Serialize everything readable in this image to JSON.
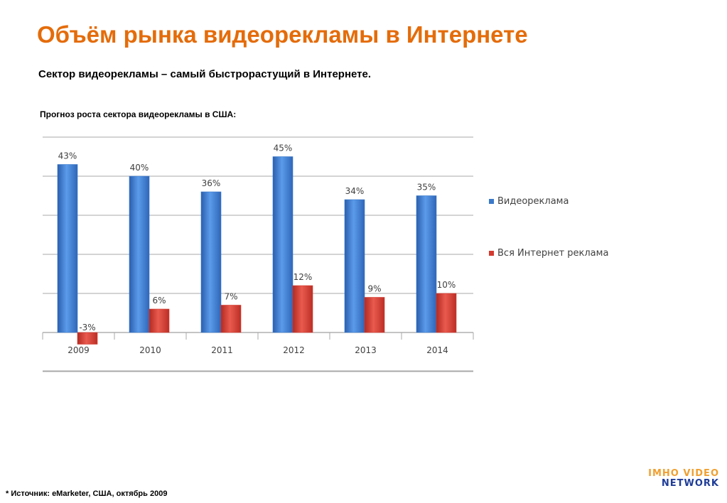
{
  "title": "Объём рынка видеорекламы в Интернете",
  "subtitle": "Сектор видеорекламы – самый быстрорастущий в Интернете.",
  "chart_caption": "Прогноз роста сектора видеорекламы в США:",
  "footnote": "* Источник:  eMarketer, США, октябрь 2009",
  "logo": {
    "line1": "IMHO VIDEO",
    "line2": "NETWORK"
  },
  "colors": {
    "title": "#e46c0a",
    "series1": "#3a78c9",
    "series2": "#d43a2f",
    "grid": "#9a9a9a"
  },
  "chart_data": {
    "type": "bar",
    "categories": [
      "2009",
      "2010",
      "2011",
      "2012",
      "2013",
      "2014"
    ],
    "series": [
      {
        "name": "Видеореклама",
        "values": [
          43,
          40,
          36,
          45,
          34,
          35
        ],
        "labels": [
          "43%",
          "40%",
          "36%",
          "45%",
          "34%",
          "35%"
        ]
      },
      {
        "name": "Вся Интернет реклама",
        "values": [
          -3,
          6,
          7,
          12,
          9,
          10
        ],
        "labels": [
          "-3%",
          "6%",
          "7%",
          "12%",
          "9%",
          "10%"
        ]
      }
    ],
    "ylim": [
      -10,
      50
    ],
    "grid": true,
    "legend": "right",
    "xlabel": "",
    "ylabel": ""
  }
}
